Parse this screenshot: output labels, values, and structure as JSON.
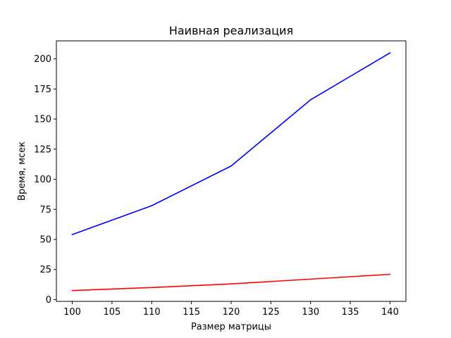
{
  "chart_data": {
    "type": "line",
    "title": "Наивная реализация",
    "xlabel": "Размер матрицы",
    "ylabel": "Время, мсек",
    "x": [
      100,
      110,
      120,
      130,
      140
    ],
    "xticks": [
      "100",
      "105",
      "110",
      "115",
      "120",
      "125",
      "130",
      "135",
      "140"
    ],
    "yticks": [
      "0",
      "25",
      "50",
      "75",
      "100",
      "125",
      "150",
      "175",
      "200"
    ],
    "xlim": [
      98,
      142
    ],
    "ylim": [
      -1.5,
      215
    ],
    "grid": false,
    "series": [
      {
        "color": "#0000ff",
        "values": [
          54,
          78,
          111,
          166,
          205
        ]
      },
      {
        "color": "#ff0000",
        "values": [
          7.5,
          10,
          13,
          17,
          21
        ]
      }
    ]
  }
}
